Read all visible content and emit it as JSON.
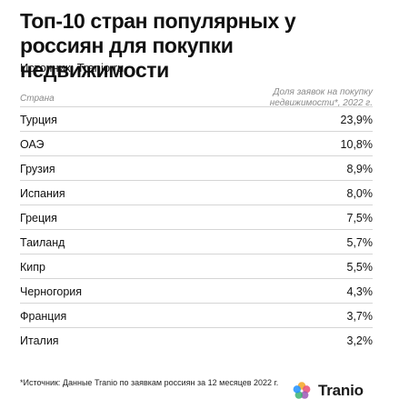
{
  "title": "Топ-10 стран популярных у россиян для покупки недвижимости",
  "source": "Источник: Tranio.ru",
  "footnote": "*Источник: Данные Tranio по заявкам россиян за 12 месяцев 2022 г.",
  "logo": {
    "brand": "Tranio",
    "icon": "tranio-logo-icon",
    "colors": [
      "#f5a623",
      "#e94e77",
      "#9b59b6",
      "#3cb371",
      "#1e90ff"
    ]
  },
  "chart_data": {
    "type": "table",
    "headers": {
      "country": "Страна",
      "share": "Доля заявок на покупку недвижимости*, 2022 г."
    },
    "rows": [
      {
        "country": "Турция",
        "share": "23,9%"
      },
      {
        "country": "ОАЭ",
        "share": "10,8%"
      },
      {
        "country": "Грузия",
        "share": "8,9%"
      },
      {
        "country": "Испания",
        "share": "8,0%"
      },
      {
        "country": "Греция",
        "share": "7,5%"
      },
      {
        "country": "Таиланд",
        "share": "5,7%"
      },
      {
        "country": "Кипр",
        "share": "5,5%"
      },
      {
        "country": "Черногория",
        "share": "4,3%"
      },
      {
        "country": "Франция",
        "share": "3,7%"
      },
      {
        "country": "Италия",
        "share": "3,2%"
      }
    ]
  }
}
